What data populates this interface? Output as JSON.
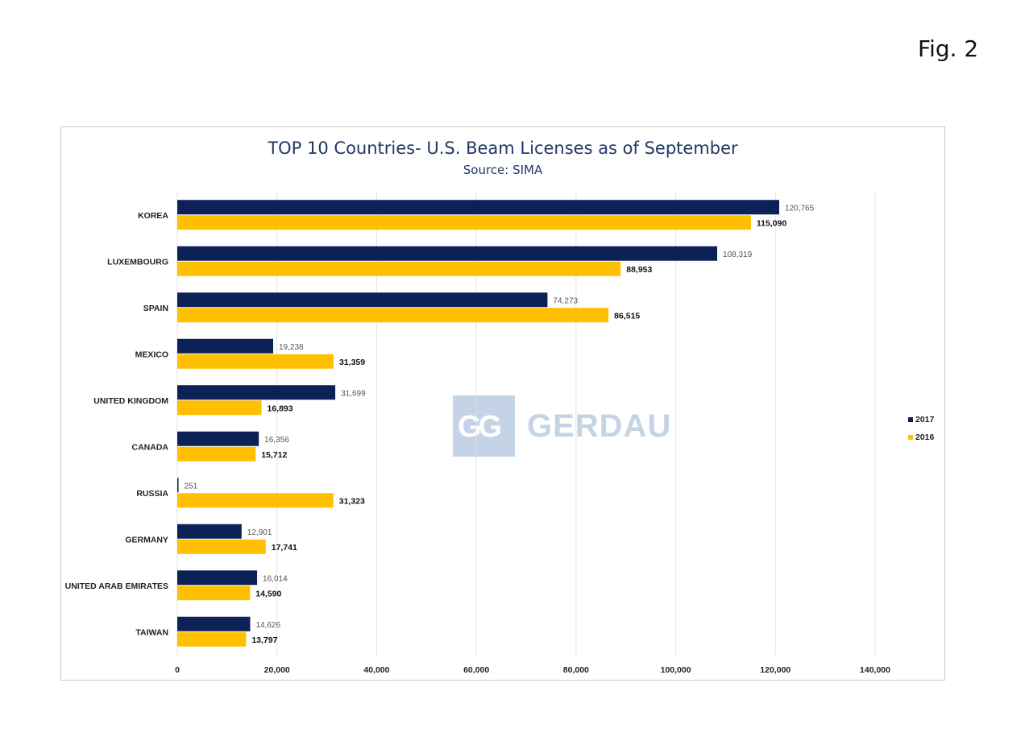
{
  "figure_label": "Fig. 2",
  "watermark": {
    "text": "GERDAU",
    "mark": "GG"
  },
  "colors": {
    "series_2017": "#0c2257",
    "series_2016": "#fec001",
    "grid": "#e3e3e3",
    "title": "#1f3864"
  },
  "chart_data": {
    "type": "bar",
    "orientation": "horizontal",
    "title": "TOP 10 Countries- U.S. Beam Licenses as of September",
    "subtitle": "Source: SIMA",
    "categories": [
      "KOREA",
      "LUXEMBOURG",
      "SPAIN",
      "MEXICO",
      "UNITED KINGDOM",
      "CANADA",
      "RUSSIA",
      "GERMANY",
      "UNITED ARAB EMIRATES",
      "TAIWAN"
    ],
    "series": [
      {
        "name": "2017",
        "values": [
          120765,
          108319,
          74273,
          19238,
          31699,
          16356,
          251,
          12901,
          16014,
          14626
        ],
        "labels": [
          "120,765",
          "108,319",
          "74,273",
          "19,238",
          "31,699",
          "16,356",
          "251",
          "12,901",
          "16,014",
          "14,626"
        ]
      },
      {
        "name": "2016",
        "values": [
          115090,
          88953,
          86515,
          31359,
          16893,
          15712,
          31323,
          17741,
          14590,
          13797
        ],
        "labels": [
          "115,090",
          "88,953",
          "86,515",
          "31,359",
          "16,893",
          "15,712",
          "31,323",
          "17,741",
          "14,590",
          "13,797"
        ]
      }
    ],
    "xlim": [
      0,
      140000
    ],
    "xticks": [
      0,
      20000,
      40000,
      60000,
      80000,
      100000,
      120000,
      140000
    ],
    "xtick_labels": [
      "0",
      "20,000",
      "40,000",
      "60,000",
      "80,000",
      "100,000",
      "120,000",
      "140,000"
    ],
    "grid": "vertical",
    "legend_position": "right"
  }
}
